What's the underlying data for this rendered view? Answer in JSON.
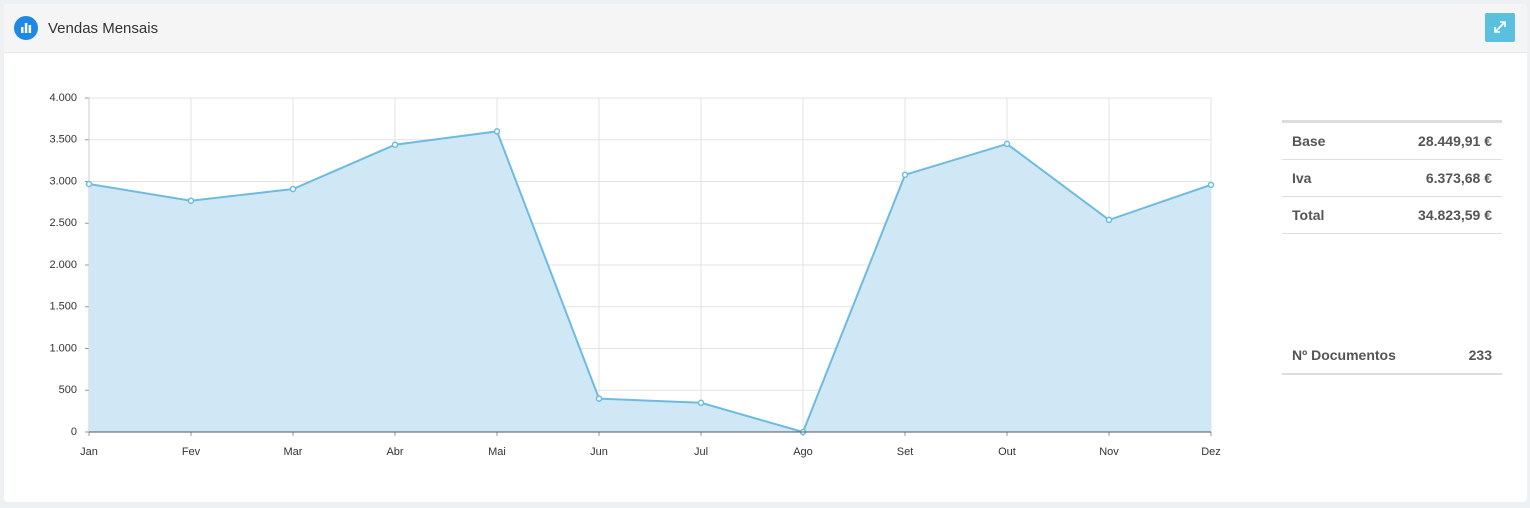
{
  "chart_data": {
    "type": "area",
    "title": "Vendas Mensais",
    "categories": [
      "Jan",
      "Fev",
      "Mar",
      "Abr",
      "Mai",
      "Jun",
      "Jul",
      "Ago",
      "Set",
      "Out",
      "Nov",
      "Dez"
    ],
    "values": [
      2970,
      2770,
      2910,
      3440,
      3600,
      400,
      350,
      0,
      3080,
      3450,
      2540,
      2960
    ],
    "color": "#6dbbe0",
    "fill": "#d0e8f5",
    "ylim": [
      0,
      4000
    ],
    "yticks": [
      0,
      500,
      {
        "value": 1000,
        "label": "1.000"
      },
      {
        "value": 1500,
        "label": "1.500"
      },
      {
        "value": 2000,
        "label": "2.000"
      },
      {
        "value": 2500,
        "label": "2.500"
      },
      {
        "value": 3000,
        "label": "3.000"
      },
      {
        "value": 3500,
        "label": "3.500"
      },
      {
        "value": 4000,
        "label": "4.000"
      }
    ],
    "grid": true
  },
  "summary": [
    {
      "label": "Base",
      "value": "28.449,91 €"
    },
    {
      "label": "Iva",
      "value": "6.373,68 €"
    },
    {
      "label": "Total",
      "value": "34.823,59 €"
    }
  ],
  "documents": {
    "label": "Nº Documentos",
    "value": 233
  }
}
